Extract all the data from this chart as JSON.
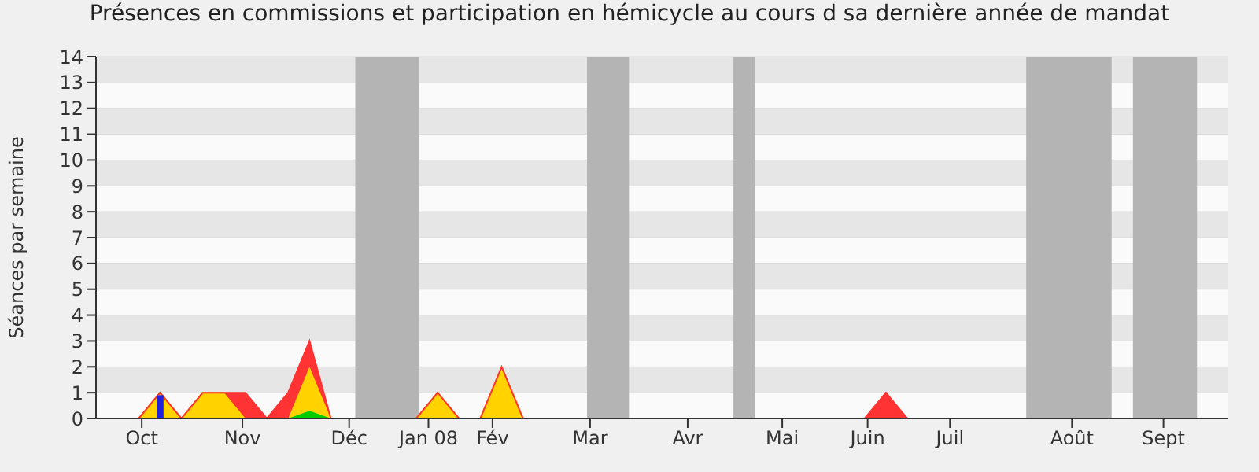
{
  "chart_data": {
    "type": "area",
    "title": "Présences en commissions et participation en hémicycle au cours d sa dernière année de mandat",
    "ylabel": "Séances par semaine",
    "stacked": true,
    "x": [
      "2007-10-01",
      "2007-10-08",
      "2007-10-15",
      "2007-10-22",
      "2007-10-29",
      "2007-11-05",
      "2007-11-12",
      "2007-11-19",
      "2007-11-26",
      "2007-12-03",
      "2007-12-10",
      "2007-12-17",
      "2007-12-24",
      "2007-12-31",
      "2008-01-07",
      "2008-01-14",
      "2008-01-21",
      "2008-01-28",
      "2008-02-04",
      "2008-02-11",
      "2008-02-18",
      "2008-02-25",
      "2008-03-03",
      "2008-03-10",
      "2008-03-17",
      "2008-03-24",
      "2008-03-31",
      "2008-04-07",
      "2008-04-14",
      "2008-04-21",
      "2008-04-28",
      "2008-05-05",
      "2008-05-12",
      "2008-05-19",
      "2008-05-26",
      "2008-06-02",
      "2008-06-09",
      "2008-06-16",
      "2008-06-23",
      "2008-06-30",
      "2008-07-07",
      "2008-07-14",
      "2008-07-21",
      "2008-07-28",
      "2008-08-04",
      "2008-08-11",
      "2008-08-18",
      "2008-08-25",
      "2008-09-01",
      "2008-09-08",
      "2008-09-15",
      "2008-09-22",
      "2008-09-29",
      "2008-10-06"
    ],
    "series": [
      {
        "color": "#00cc00",
        "values": [
          0,
          0,
          0,
          0,
          0,
          0,
          0,
          0,
          0,
          0,
          0.3,
          0,
          0,
          0,
          0,
          0,
          0,
          0,
          0,
          0,
          0,
          0,
          0,
          0,
          0,
          0,
          0,
          0,
          0,
          0,
          0,
          0,
          0,
          0,
          0,
          0,
          0,
          0,
          0,
          0,
          0,
          0,
          0,
          0,
          0,
          0,
          0,
          0,
          0,
          0,
          0,
          0,
          0,
          0
        ]
      },
      {
        "color": "#ffd200",
        "values": [
          0,
          0,
          0,
          1,
          0,
          1,
          1,
          0,
          0,
          0,
          1.7,
          0,
          0,
          0,
          0,
          0,
          1,
          0,
          0,
          2,
          0,
          0,
          0,
          0,
          0,
          0,
          0,
          0,
          0,
          0,
          0,
          0,
          0,
          0,
          0,
          0,
          0,
          0,
          0,
          0,
          0,
          0,
          0,
          0,
          0,
          0,
          0,
          0,
          0,
          0,
          0,
          0,
          0,
          0
        ]
      },
      {
        "color": "#ff3333",
        "values": [
          0,
          0,
          0,
          0,
          0,
          0,
          0,
          1,
          0,
          1,
          1,
          0,
          0,
          0,
          0,
          0,
          0,
          0,
          0,
          0,
          0,
          0,
          0,
          0,
          0,
          0,
          0,
          0,
          0,
          0,
          0,
          0,
          0,
          0,
          0,
          0,
          0,
          1,
          0,
          0,
          0,
          0,
          0,
          0,
          0,
          0,
          0,
          0,
          0,
          0,
          0,
          0,
          0,
          0
        ]
      },
      {
        "type": "bar",
        "color": "#2222dd",
        "values": [
          0,
          0,
          0,
          0.9,
          0,
          0,
          0,
          0,
          0,
          0,
          0,
          0,
          0,
          0,
          0,
          0,
          0,
          0,
          0,
          0,
          0,
          0,
          0,
          0,
          0,
          0,
          0,
          0,
          0,
          0,
          0,
          0,
          0,
          0,
          0,
          0,
          0,
          0,
          0,
          0,
          0,
          0,
          0,
          0,
          0,
          0,
          0,
          0,
          0,
          0,
          0,
          0,
          0,
          0
        ]
      }
    ],
    "xlim": [
      "2007-10-01",
      "2008-10-06"
    ],
    "xticks": [
      {
        "value": "2007-10-16",
        "label": "Oct"
      },
      {
        "value": "2007-11-18",
        "label": "Nov"
      },
      {
        "value": "2007-12-23",
        "label": "Déc"
      },
      {
        "value": "2008-01-18",
        "label": "Jan 08"
      },
      {
        "value": "2008-02-08",
        "label": "Fév"
      },
      {
        "value": "2008-03-11",
        "label": "Mar"
      },
      {
        "value": "2008-04-12",
        "label": "Avr"
      },
      {
        "value": "2008-05-13",
        "label": "Mai"
      },
      {
        "value": "2008-06-10",
        "label": "Juin"
      },
      {
        "value": "2008-07-07",
        "label": "Juil"
      },
      {
        "value": "2008-08-16",
        "label": "Août"
      },
      {
        "value": "2008-09-15",
        "label": "Sept"
      }
    ],
    "ylim": [
      0,
      14
    ],
    "yticks": [
      0,
      1,
      2,
      3,
      4,
      5,
      6,
      7,
      8,
      9,
      10,
      11,
      12,
      13,
      14
    ],
    "grid": "y",
    "bands": [
      {
        "axis": "x",
        "from": "2007-12-25",
        "to": "2008-01-15",
        "color": "#b4b4b4"
      },
      {
        "axis": "x",
        "from": "2008-03-10",
        "to": "2008-03-24",
        "color": "#b4b4b4"
      },
      {
        "axis": "x",
        "from": "2008-04-27",
        "to": "2008-05-04",
        "color": "#b4b4b4"
      },
      {
        "axis": "x",
        "from": "2008-08-01",
        "to": "2008-08-29",
        "color": "#b4b4b4"
      },
      {
        "axis": "x",
        "from": "2008-09-05",
        "to": "2008-09-26",
        "color": "#b4b4b4"
      }
    ]
  }
}
